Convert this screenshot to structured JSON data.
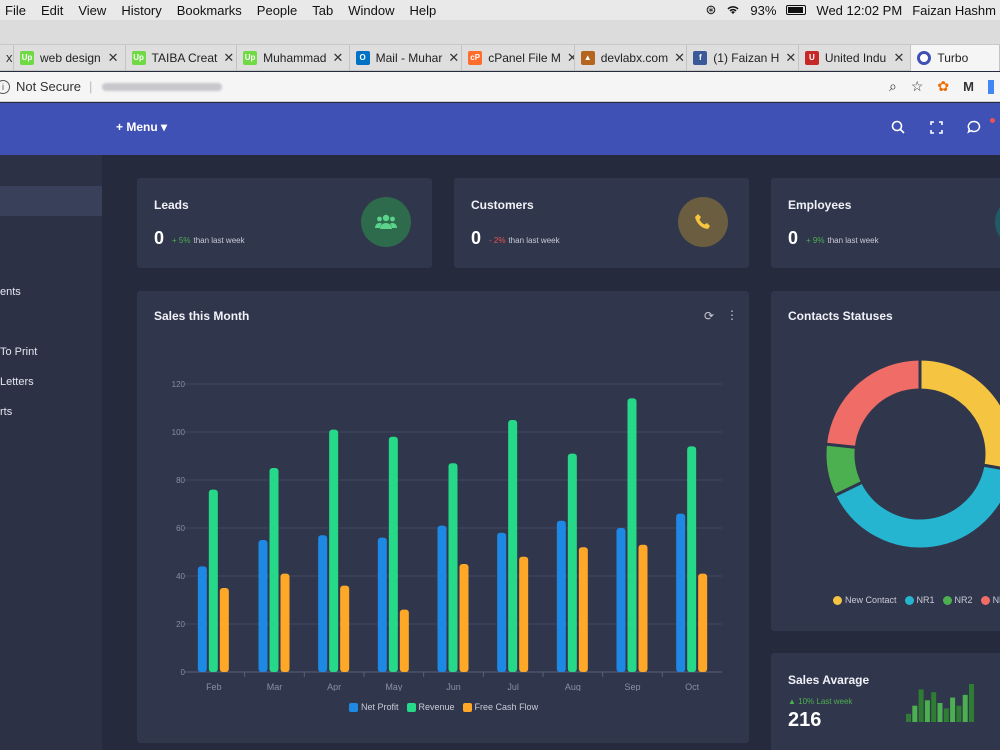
{
  "mac": {
    "menu": [
      "File",
      "Edit",
      "View",
      "History",
      "Bookmarks",
      "People",
      "Tab",
      "Window",
      "Help"
    ],
    "battery": "93%",
    "clock": "Wed 12:02 PM",
    "user": "Faizan Hashm"
  },
  "tabs": [
    {
      "label": "x",
      "fav": "",
      "favcolor": ""
    },
    {
      "label": "web design",
      "fav": "Up",
      "favcolor": "#6fda44"
    },
    {
      "label": "TAIBA Creat",
      "fav": "Up",
      "favcolor": "#6fda44"
    },
    {
      "label": "Muhammad",
      "fav": "Up",
      "favcolor": "#6fda44"
    },
    {
      "label": "Mail - Muhar",
      "fav": "O",
      "favcolor": "#0072c6"
    },
    {
      "label": "cPanel File M",
      "fav": "cP",
      "favcolor": "#ff6c2c"
    },
    {
      "label": "devlabx.com",
      "fav": "▲",
      "favcolor": "#b5651d"
    },
    {
      "label": "(1) Faizan H",
      "fav": "f",
      "favcolor": "#3b5998"
    },
    {
      "label": "United Indu",
      "fav": "U",
      "favcolor": "#c62828"
    },
    {
      "label": "Turbo",
      "fav": "",
      "favcolor": "#3f51b5"
    }
  ],
  "address": {
    "security": "Not Secure"
  },
  "header": {
    "menu_label": "+ Menu ▾"
  },
  "sidebar": {
    "items": [
      "ents",
      "To Print",
      "Letters",
      "rts"
    ]
  },
  "stats": [
    {
      "title": "Leads",
      "value": "0",
      "pct": "+ 5%",
      "pct_color": "#4caf50",
      "sub": "than last week",
      "icon": "users-icon",
      "icon_glyph": "👥",
      "bg": "#2e6b4d",
      "fg": "#5bd38b"
    },
    {
      "title": "Customers",
      "value": "0",
      "pct": "- 2%",
      "pct_color": "#ef5350",
      "sub": "than last week",
      "icon": "phone-icon",
      "icon_glyph": "✆",
      "bg": "#6b5d3f",
      "fg": "#f5c542"
    },
    {
      "title": "Employees",
      "value": "0",
      "pct": "+ 9%",
      "pct_color": "#4caf50",
      "sub": "than last week",
      "icon": "employees-icon",
      "icon_glyph": "",
      "bg": "#1f5a66",
      "fg": "#26c6da"
    }
  ],
  "sales_avg": {
    "title": "Sales Avarage",
    "pct": "▲ 10% Last week",
    "value": "216"
  },
  "chart_data": [
    {
      "type": "bar",
      "title": "Sales this Month",
      "categories": [
        "Feb",
        "Mar",
        "Apr",
        "May",
        "Jun",
        "Jul",
        "Aug",
        "Sep",
        "Oct"
      ],
      "ylim": [
        0,
        120
      ],
      "yticks": [
        0,
        20,
        40,
        60,
        80,
        100,
        120
      ],
      "series": [
        {
          "name": "Net Profit",
          "color": "#1e88e5",
          "values": [
            44,
            55,
            57,
            56,
            61,
            58,
            63,
            60,
            66
          ]
        },
        {
          "name": "Revenue",
          "color": "#26d989",
          "values": [
            76,
            85,
            101,
            98,
            87,
            105,
            91,
            114,
            94
          ]
        },
        {
          "name": "Free Cash Flow",
          "color": "#ffa726",
          "values": [
            35,
            41,
            36,
            26,
            45,
            48,
            52,
            53,
            41
          ]
        }
      ]
    },
    {
      "type": "pie",
      "title": "Contacts Statuses",
      "slices": [
        {
          "name": "New Contact",
          "color": "#f5c542",
          "value": 25
        },
        {
          "name": "NR1",
          "color": "#26b5d0",
          "value": 36
        },
        {
          "name": "NR2",
          "color": "#4caf50",
          "value": 8
        },
        {
          "name": "NR",
          "color": "#ef6c67",
          "value": 21
        }
      ]
    }
  ],
  "sparkline": {
    "values": [
      3,
      6,
      12,
      8,
      11,
      7,
      5,
      9,
      6,
      10,
      14
    ],
    "colors": [
      "#2e7d32",
      "#4caf50"
    ]
  }
}
